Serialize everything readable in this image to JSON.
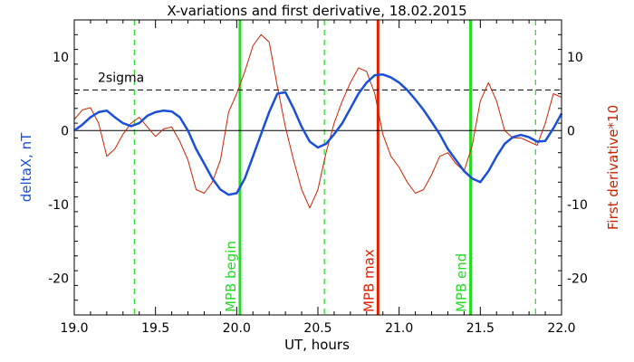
{
  "chart_data": {
    "type": "line",
    "title": "X-variations and first derivative, 18.02.2015",
    "xlabel": "UT, hours",
    "ylabel_left": "deltaX, nT",
    "ylabel_right": "First derivative*10",
    "xlim": [
      19.0,
      22.0
    ],
    "ylim": [
      -25,
      15
    ],
    "xticks": [
      "19.0",
      "19.5",
      "20.0",
      "20.5",
      "21.0",
      "21.5",
      "22.0"
    ],
    "xtick_values": [
      19.0,
      19.5,
      20.0,
      20.5,
      21.0,
      21.5,
      22.0
    ],
    "yticks": [
      "-20",
      "-10",
      "0",
      "10"
    ],
    "ytick_values": [
      -20,
      -10,
      0,
      10
    ],
    "threshold": {
      "label": "2sigma",
      "value": 5.5
    },
    "zero_line": 0,
    "colors": {
      "deltaX": "#1a4fd8",
      "derivative": "#cc2200",
      "mpb_edges": "#22dd22",
      "mpb_max": "#dd2200"
    },
    "series": [
      {
        "name": "deltaX, nT",
        "color": "#1a4fd8",
        "x": [
          19.0,
          19.05,
          19.1,
          19.15,
          19.2,
          19.25,
          19.3,
          19.35,
          19.4,
          19.45,
          19.5,
          19.55,
          19.6,
          19.65,
          19.7,
          19.75,
          19.8,
          19.85,
          19.9,
          19.95,
          20.0,
          20.05,
          20.1,
          20.15,
          20.2,
          20.25,
          20.3,
          20.35,
          20.4,
          20.45,
          20.5,
          20.55,
          20.6,
          20.65,
          20.7,
          20.75,
          20.8,
          20.85,
          20.9,
          20.95,
          21.0,
          21.05,
          21.1,
          21.15,
          21.2,
          21.25,
          21.3,
          21.35,
          21.4,
          21.45,
          21.5,
          21.55,
          21.6,
          21.65,
          21.7,
          21.75,
          21.8,
          21.85,
          21.9,
          21.95,
          22.0
        ],
        "values": [
          0,
          0.8,
          1.8,
          2.5,
          2.7,
          1.8,
          1.0,
          0.6,
          1.0,
          2.0,
          2.5,
          2.7,
          2.6,
          1.8,
          0,
          -2.5,
          -4.5,
          -6.5,
          -8.0,
          -8.7,
          -8.5,
          -6.5,
          -3.5,
          -0.5,
          2.5,
          5.0,
          5.2,
          3.0,
          0.5,
          -1.5,
          -2.3,
          -1.8,
          -0.5,
          1.0,
          3.0,
          5.0,
          6.5,
          7.5,
          7.6,
          7.2,
          6.5,
          5.5,
          4.2,
          2.8,
          1.2,
          -0.5,
          -2.5,
          -4.0,
          -5.5,
          -6.5,
          -7.0,
          -5.5,
          -3.5,
          -1.8,
          -0.9,
          -0.6,
          -0.9,
          -1.5,
          -1.4,
          0.3,
          2.3
        ]
      },
      {
        "name": "First derivative*10",
        "color": "#cc2200",
        "x": [
          19.0,
          19.05,
          19.1,
          19.15,
          19.2,
          19.25,
          19.3,
          19.35,
          19.4,
          19.45,
          19.5,
          19.55,
          19.6,
          19.65,
          19.7,
          19.75,
          19.8,
          19.85,
          19.9,
          19.95,
          20.0,
          20.05,
          20.1,
          20.15,
          20.2,
          20.25,
          20.3,
          20.35,
          20.4,
          20.45,
          20.5,
          20.55,
          20.6,
          20.65,
          20.7,
          20.75,
          20.8,
          20.85,
          20.9,
          20.95,
          21.0,
          21.05,
          21.1,
          21.15,
          21.2,
          21.25,
          21.3,
          21.35,
          21.4,
          21.45,
          21.5,
          21.55,
          21.6,
          21.65,
          21.7,
          21.75,
          21.8,
          21.85,
          21.9,
          21.95,
          22.0
        ],
        "values": [
          1.5,
          2.8,
          3.1,
          1.0,
          -3.5,
          -2.5,
          -0.5,
          1.0,
          1.8,
          0.5,
          -0.8,
          0.2,
          0.5,
          -1.5,
          -4.0,
          -8.0,
          -8.5,
          -7.0,
          -4.0,
          2.5,
          5.0,
          8.0,
          11.5,
          13.0,
          12.0,
          6.0,
          0.5,
          -4.0,
          -8.0,
          -10.5,
          -8.0,
          -3.0,
          1.0,
          4.0,
          6.5,
          8.5,
          8.0,
          5.0,
          -0.5,
          -3.5,
          -5.0,
          -7.0,
          -8.5,
          -8.0,
          -6.0,
          -3.5,
          -3.0,
          -4.5,
          -5.5,
          -2.0,
          4.0,
          6.5,
          4.0,
          0,
          -1.0,
          -1.0,
          -1.5,
          -2.0,
          1.0,
          5.0,
          4.5
        ]
      }
    ],
    "markers": [
      {
        "label": "MPB begin",
        "x": 20.02,
        "color": "#22dd22",
        "style": "solid"
      },
      {
        "label": "MPB max",
        "x": 20.87,
        "color": "#dd2200",
        "style": "solid"
      },
      {
        "label": "MPB end",
        "x": 21.44,
        "color": "#22dd22",
        "style": "solid"
      },
      {
        "label": "",
        "x": 19.37,
        "color": "#22dd22",
        "style": "dashed"
      },
      {
        "label": "",
        "x": 20.54,
        "color": "#22dd22",
        "style": "dashed"
      },
      {
        "label": "",
        "x": 21.84,
        "color": "#22dd22",
        "style": "dashed"
      }
    ]
  }
}
